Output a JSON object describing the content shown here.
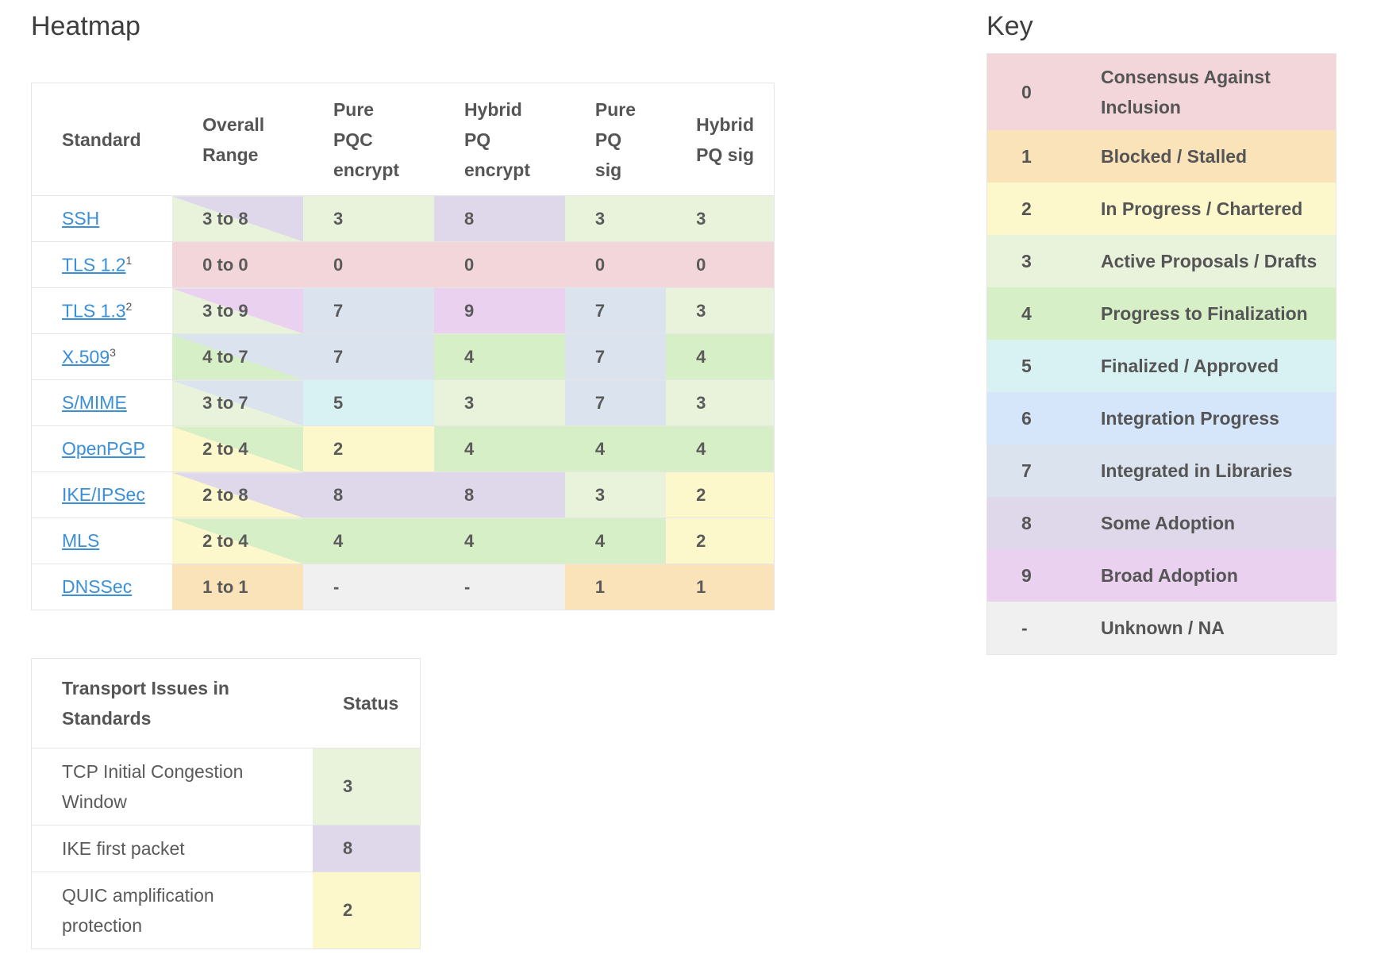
{
  "heatmap": {
    "title": "Heatmap",
    "headers": {
      "standard": "Standard",
      "overall": "Overall Range",
      "pure_pqc_encrypt": "Pure PQC encrypt",
      "hybrid_pq_encrypt": "Hybrid PQ encrypt",
      "pure_pq_sig": "Pure PQ sig",
      "hybrid_pq_sig": "Hybrid PQ sig"
    },
    "rows": [
      {
        "standard": "SSH",
        "footnote": "",
        "overall": "3 to 8",
        "range_low": 3,
        "range_high": 8,
        "pure_pqc_encrypt": "3",
        "hybrid_pq_encrypt": "8",
        "pure_pq_sig": "3",
        "hybrid_pq_sig": "3"
      },
      {
        "standard": "TLS 1.2",
        "footnote": "1",
        "overall": "0 to 0",
        "range_low": 0,
        "range_high": 0,
        "pure_pqc_encrypt": "0",
        "hybrid_pq_encrypt": "0",
        "pure_pq_sig": "0",
        "hybrid_pq_sig": "0"
      },
      {
        "standard": "TLS 1.3",
        "footnote": "2",
        "overall": "3 to 9",
        "range_low": 3,
        "range_high": 9,
        "pure_pqc_encrypt": "7",
        "hybrid_pq_encrypt": "9",
        "pure_pq_sig": "7",
        "hybrid_pq_sig": "3"
      },
      {
        "standard": "X.509",
        "footnote": "3",
        "overall": "4 to 7",
        "range_low": 4,
        "range_high": 7,
        "pure_pqc_encrypt": "7",
        "hybrid_pq_encrypt": "4",
        "pure_pq_sig": "7",
        "hybrid_pq_sig": "4"
      },
      {
        "standard": "S/MIME",
        "footnote": "",
        "overall": "3 to 7",
        "range_low": 3,
        "range_high": 7,
        "pure_pqc_encrypt": "5",
        "hybrid_pq_encrypt": "3",
        "pure_pq_sig": "7",
        "hybrid_pq_sig": "3"
      },
      {
        "standard": "OpenPGP",
        "footnote": "",
        "overall": "2 to 4",
        "range_low": 2,
        "range_high": 4,
        "pure_pqc_encrypt": "2",
        "hybrid_pq_encrypt": "4",
        "pure_pq_sig": "4",
        "hybrid_pq_sig": "4"
      },
      {
        "standard": "IKE/IPSec",
        "footnote": "",
        "overall": "2 to 8",
        "range_low": 2,
        "range_high": 8,
        "pure_pqc_encrypt": "8",
        "hybrid_pq_encrypt": "8",
        "pure_pq_sig": "3",
        "hybrid_pq_sig": "2"
      },
      {
        "standard": "MLS",
        "footnote": "",
        "overall": "2 to 4",
        "range_low": 2,
        "range_high": 4,
        "pure_pqc_encrypt": "4",
        "hybrid_pq_encrypt": "4",
        "pure_pq_sig": "4",
        "hybrid_pq_sig": "2"
      },
      {
        "standard": "DNSSec",
        "footnote": "",
        "overall": "1 to 1",
        "range_low": 1,
        "range_high": 1,
        "pure_pqc_encrypt": "-",
        "hybrid_pq_encrypt": "-",
        "pure_pq_sig": "1",
        "hybrid_pq_sig": "1"
      }
    ]
  },
  "transport": {
    "headers": {
      "issue": "Transport Issues in Standards",
      "status": "Status"
    },
    "rows": [
      {
        "issue": "TCP Initial Congestion Window",
        "status": "3"
      },
      {
        "issue": "IKE first packet",
        "status": "8"
      },
      {
        "issue": "QUIC amplification protection",
        "status": "2"
      }
    ]
  },
  "key": {
    "title": "Key",
    "items": [
      {
        "value": "0",
        "label": "Consensus Against Inclusion"
      },
      {
        "value": "1",
        "label": "Blocked / Stalled"
      },
      {
        "value": "2",
        "label": "In Progress / Chartered"
      },
      {
        "value": "3",
        "label": "Active Proposals / Drafts"
      },
      {
        "value": "4",
        "label": "Progress to Finalization"
      },
      {
        "value": "5",
        "label": "Finalized / Approved"
      },
      {
        "value": "6",
        "label": "Integration Progress"
      },
      {
        "value": "7",
        "label": "Integrated in Libraries"
      },
      {
        "value": "8",
        "label": "Some Adoption"
      },
      {
        "value": "9",
        "label": "Broad Adoption"
      },
      {
        "value": "-",
        "label": "Unknown / NA"
      }
    ]
  },
  "colors": {
    "0": "#f2d6d9",
    "1": "#fae3b9",
    "2": "#fcf8cc",
    "3": "#e9f3dc",
    "4": "#d6efc6",
    "5": "#d8f1f2",
    "6": "#d5e5fa",
    "7": "#dbe3ee",
    "8": "#dfd8ea",
    "9": "#ead1f0",
    "-": "#f0f0f0"
  }
}
